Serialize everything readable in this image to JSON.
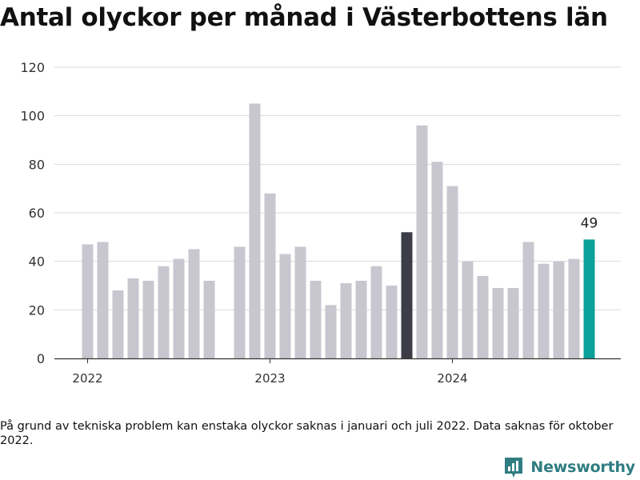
{
  "title": "Antal olyckor per månad i Västerbottens län",
  "footnote": "På grund av tekniska problem kan enstaka olyckor saknas i januari och juli 2022. Data saknas för oktober 2022.",
  "brand": {
    "name": "Newsworthy",
    "icon": "newsworthy-logo-icon"
  },
  "colors": {
    "bar": "#c8c7d0",
    "highlight_dark": "#3d3d48",
    "highlight_latest": "#0ba19a",
    "grid": "#d9d9d9",
    "axis": "#333333"
  },
  "chart_data": {
    "type": "bar",
    "title": "Antal olyckor per månad i Västerbottens län",
    "xlabel": "",
    "ylabel": "",
    "ylim": [
      0,
      120
    ],
    "yticks": [
      0,
      20,
      40,
      60,
      80,
      100,
      120
    ],
    "grid": true,
    "x_tick_labels": [
      {
        "label": "2022",
        "at": "2022-01"
      },
      {
        "label": "2023",
        "at": "2023-01"
      },
      {
        "label": "2024",
        "at": "2024-01"
      }
    ],
    "categories": [
      "2022-01",
      "2022-02",
      "2022-03",
      "2022-04",
      "2022-05",
      "2022-06",
      "2022-07",
      "2022-08",
      "2022-09",
      "2022-10",
      "2022-11",
      "2022-12",
      "2023-01",
      "2023-02",
      "2023-03",
      "2023-04",
      "2023-05",
      "2023-06",
      "2023-07",
      "2023-08",
      "2023-09",
      "2023-10",
      "2023-11",
      "2023-12",
      "2024-01",
      "2024-02",
      "2024-03",
      "2024-04",
      "2024-05",
      "2024-06",
      "2024-07",
      "2024-08",
      "2024-09",
      "2024-10"
    ],
    "values": [
      47,
      48,
      28,
      33,
      32,
      38,
      41,
      45,
      32,
      null,
      46,
      105,
      68,
      43,
      46,
      32,
      22,
      31,
      32,
      38,
      30,
      52,
      96,
      81,
      71,
      40,
      34,
      29,
      29,
      48,
      39,
      40,
      41,
      49
    ],
    "highlight": {
      "2023-10": "dark",
      "2024-10": "latest"
    },
    "data_labels": [
      {
        "category": "2024-10",
        "text": "49"
      }
    ]
  }
}
